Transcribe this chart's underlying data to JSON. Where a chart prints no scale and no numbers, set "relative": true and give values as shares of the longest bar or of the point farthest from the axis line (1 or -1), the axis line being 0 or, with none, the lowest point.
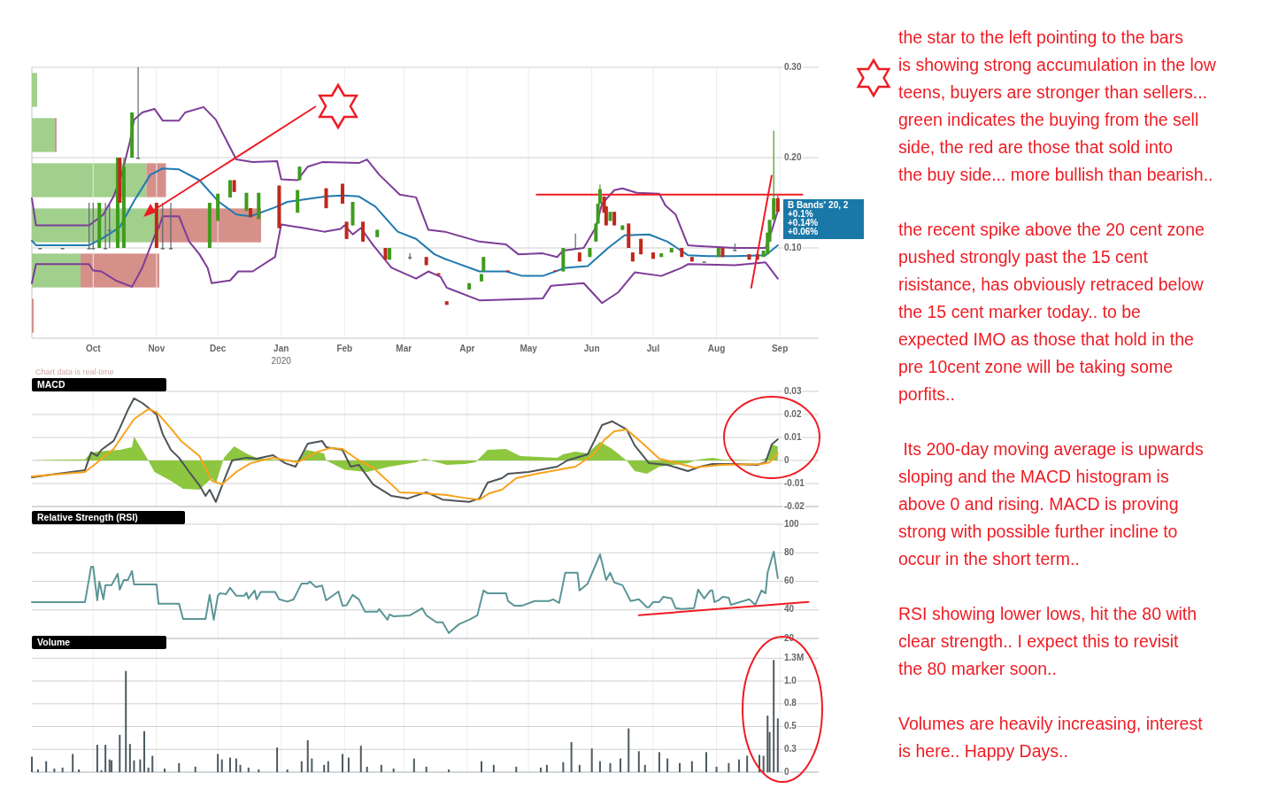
{
  "chart_data": [
    {
      "type": "candlestick",
      "xlim": [
        "2019-09-01",
        "2020-09-20"
      ],
      "ylim": [
        0,
        0.3
      ],
      "xticks": [
        {
          "value": "2019-10-01",
          "label": "Oct"
        },
        {
          "value": "2019-11-01",
          "label": "Nov"
        },
        {
          "value": "2019-12-01",
          "label": "Dec"
        },
        {
          "value": "2020-01-01",
          "label": "Jan\n2020"
        },
        {
          "value": "2020-02-01",
          "label": "Feb"
        },
        {
          "value": "2020-03-01",
          "label": "Mar"
        },
        {
          "value": "2020-04-01",
          "label": "Apr"
        },
        {
          "value": "2020-05-01",
          "label": "May"
        },
        {
          "value": "2020-06-01",
          "label": "Jun"
        },
        {
          "value": "2020-07-01",
          "label": "Jul"
        },
        {
          "value": "2020-08-01",
          "label": "Aug"
        },
        {
          "value": "2020-09-01",
          "label": "Sep"
        }
      ],
      "yticks": [
        {
          "value": 0.1,
          "label": "0.10"
        },
        {
          "value": 0.2,
          "label": "0.20"
        },
        {
          "value": 0.3,
          "label": "0.30"
        }
      ],
      "grid": true,
      "x": [
        "2019-09-05",
        "2019-09-16",
        "2019-09-29",
        "2019-10-01",
        "2019-10-04",
        "2019-10-07",
        "2019-10-09",
        "2019-10-13",
        "2019-10-14",
        "2019-10-16",
        "2019-10-20",
        "2019-10-23",
        "2019-11-01",
        "2019-11-04",
        "2019-11-08",
        "2019-11-27",
        "2019-12-01",
        "2019-12-07",
        "2019-12-09",
        "2019-12-15",
        "2019-12-17",
        "2019-12-21",
        "2019-12-31",
        "2020-01-09",
        "2020-01-10",
        "2020-01-23",
        "2020-01-31",
        "2020-02-02",
        "2020-02-05",
        "2020-02-10",
        "2020-02-17",
        "2020-02-21",
        "2020-02-23",
        "2020-03-04",
        "2020-03-12",
        "2020-03-18",
        "2020-03-22",
        "2020-04-02",
        "2020-04-08",
        "2020-04-09",
        "2020-04-21",
        "2020-05-14",
        "2020-05-18",
        "2020-05-24",
        "2020-05-26",
        "2020-05-31",
        "2020-06-03",
        "2020-06-04",
        "2020-06-05",
        "2020-06-07",
        "2020-06-08",
        "2020-06-10",
        "2020-06-12",
        "2020-06-16",
        "2020-06-19",
        "2020-06-21",
        "2020-06-25",
        "2020-07-01",
        "2020-07-05",
        "2020-07-10",
        "2020-07-15",
        "2020-07-20",
        "2020-07-26",
        "2020-08-02",
        "2020-08-04",
        "2020-08-10",
        "2020-08-17",
        "2020-08-21",
        "2020-08-24",
        "2020-08-26",
        "2020-08-27",
        "2020-08-29",
        "2020-08-31"
      ],
      "ohlc": [
        [
          0.1,
          0.1,
          0.1,
          0.1
        ],
        [
          0.1,
          0.1,
          0.1,
          0.1
        ],
        [
          0.1,
          0.15,
          0.1,
          0.1
        ],
        [
          0.1,
          0.15,
          0.1,
          0.1
        ],
        [
          0.1,
          0.15,
          0.1,
          0.15
        ],
        [
          0.1,
          0.15,
          0.1,
          0.1
        ],
        [
          0.12,
          0.15,
          0.1,
          0.12
        ],
        [
          0.1,
          0.2,
          0.1,
          0.2
        ],
        [
          0.2,
          0.2,
          0.15,
          0.15
        ],
        [
          0.1,
          0.2,
          0.1,
          0.19
        ],
        [
          0.2,
          0.25,
          0.2,
          0.25
        ],
        [
          0.2,
          0.3,
          0.2,
          0.2
        ],
        [
          0.15,
          0.15,
          0.1,
          0.1
        ],
        [
          0.1,
          0.15,
          0.1,
          0.1
        ],
        [
          0.1,
          0.15,
          0.1,
          0.1
        ],
        [
          0.1,
          0.15,
          0.1,
          0.15
        ],
        [
          0.13,
          0.16,
          0.13,
          0.16
        ],
        [
          0.156,
          0.175,
          0.156,
          0.175
        ],
        [
          0.175,
          0.175,
          0.162,
          0.162
        ],
        [
          0.141,
          0.161,
          0.141,
          0.161
        ],
        [
          0.144,
          0.144,
          0.134,
          0.134
        ],
        [
          0.132,
          0.161,
          0.132,
          0.161
        ],
        [
          0.169,
          0.169,
          0.122,
          0.122
        ],
        [
          0.139,
          0.164,
          0.139,
          0.164
        ],
        [
          0.175,
          0.19,
          0.175,
          0.19
        ],
        [
          0.166,
          0.166,
          0.144,
          0.144
        ],
        [
          0.171,
          0.171,
          0.149,
          0.149
        ],
        [
          0.129,
          0.129,
          0.11,
          0.11
        ],
        [
          0.125,
          0.151,
          0.125,
          0.151
        ],
        [
          0.129,
          0.129,
          0.107,
          0.107
        ],
        [
          0.112,
          0.12,
          0.112,
          0.12
        ],
        [
          0.1,
          0.1,
          0.087,
          0.087
        ],
        [
          0.087,
          0.1,
          0.087,
          0.1
        ],
        [
          0.09,
          0.094,
          0.087,
          0.09
        ],
        [
          0.09,
          0.09,
          0.081,
          0.081
        ],
        [
          0.072,
          0.072,
          0.07,
          0.07
        ],
        [
          0.041,
          0.041,
          0.037,
          0.037
        ],
        [
          0.054,
          0.061,
          0.054,
          0.061
        ],
        [
          0.063,
          0.071,
          0.063,
          0.071
        ],
        [
          0.074,
          0.09,
          0.074,
          0.09
        ],
        [
          0.075,
          0.075,
          0.074,
          0.074
        ],
        [
          0.075,
          0.075,
          0.074,
          0.074
        ],
        [
          0.074,
          0.1,
          0.074,
          0.1
        ],
        [
          0.1,
          0.116,
          0.1,
          0.1
        ],
        [
          0.095,
          0.095,
          0.085,
          0.085
        ],
        [
          0.09,
          0.1,
          0.09,
          0.1
        ],
        [
          0.107,
          0.127,
          0.107,
          0.127
        ],
        [
          0.127,
          0.149,
          0.127,
          0.149
        ],
        [
          0.149,
          0.17,
          0.149,
          0.165
        ],
        [
          0.157,
          0.157,
          0.139,
          0.139
        ],
        [
          0.146,
          0.146,
          0.125,
          0.125
        ],
        [
          0.13,
          0.14,
          0.13,
          0.14
        ],
        [
          0.14,
          0.14,
          0.125,
          0.125
        ],
        [
          0.12,
          0.125,
          0.12,
          0.125
        ],
        [
          0.127,
          0.127,
          0.1,
          0.1
        ],
        [
          0.095,
          0.095,
          0.085,
          0.085
        ],
        [
          0.11,
          0.11,
          0.093,
          0.093
        ],
        [
          0.095,
          0.095,
          0.088,
          0.088
        ],
        [
          0.09,
          0.094,
          0.09,
          0.094
        ],
        [
          0.095,
          0.1,
          0.095,
          0.1
        ],
        [
          0.1,
          0.1,
          0.09,
          0.09
        ],
        [
          0.09,
          0.09,
          0.085,
          0.085
        ],
        [
          0.085,
          0.085,
          0.085,
          0.085
        ],
        [
          0.09,
          0.1,
          0.09,
          0.1
        ],
        [
          0.1,
          0.1,
          0.09,
          0.09
        ],
        [
          0.098,
          0.105,
          0.098,
          0.098
        ],
        [
          0.093,
          0.093,
          0.087,
          0.087
        ],
        [
          0.093,
          0.093,
          0.087,
          0.087
        ],
        [
          0.09,
          0.097,
          0.09,
          0.097
        ],
        [
          0.093,
          0.117,
          0.093,
          0.117
        ],
        [
          0.107,
          0.131,
          0.107,
          0.131
        ],
        [
          0.131,
          0.23,
          0.131,
          0.155
        ],
        [
          0.155,
          0.158,
          0.14,
          0.14
        ]
      ],
      "series": [
        {
          "type": "line",
          "color": "#7d3c98",
          "x": [
            "2019-09-01",
            "2019-09-03",
            "2019-09-29",
            "2019-10-06",
            "2019-10-11",
            "2019-10-15",
            "2019-10-19",
            "2019-10-21",
            "2019-10-25",
            "2019-10-31",
            "2019-11-04",
            "2019-11-12",
            "2019-11-15",
            "2019-11-24",
            "2019-11-30",
            "2019-12-10",
            "2019-12-18",
            "2019-12-30",
            "2020-01-01",
            "2020-01-09",
            "2020-01-14",
            "2020-01-21",
            "2020-02-08",
            "2020-02-12",
            "2020-02-18",
            "2020-02-28",
            "2020-03-07",
            "2020-03-13",
            "2020-03-21",
            "2020-04-07",
            "2020-04-20",
            "2020-04-26",
            "2020-05-08",
            "2020-05-15",
            "2020-05-18",
            "2020-05-28",
            "2020-06-03",
            "2020-06-06",
            "2020-06-12",
            "2020-06-16",
            "2020-06-23",
            "2020-07-04",
            "2020-07-07",
            "2020-07-12",
            "2020-07-18",
            "2020-07-24",
            "2020-08-10",
            "2020-08-25",
            "2020-08-28",
            "2020-08-31"
          ],
          "values": [
            0.155,
            0.125,
            0.125,
            0.137,
            0.157,
            0.182,
            0.218,
            0.242,
            0.25,
            0.254,
            0.241,
            0.241,
            0.25,
            0.256,
            0.242,
            0.198,
            0.195,
            0.196,
            0.176,
            0.175,
            0.19,
            0.195,
            0.194,
            0.198,
            0.181,
            0.159,
            0.156,
            0.12,
            0.118,
            0.107,
            0.104,
            0.093,
            0.094,
            0.09,
            0.097,
            0.1,
            0.123,
            0.149,
            0.164,
            0.166,
            0.161,
            0.16,
            0.147,
            0.137,
            0.103,
            0.102,
            0.1,
            0.1,
            0.119,
            0.141
          ]
        },
        {
          "type": "line",
          "color": "#1f7bb0",
          "x": [
            "2019-09-01",
            "2019-09-03",
            "2019-09-29",
            "2019-10-05",
            "2019-10-14",
            "2019-10-21",
            "2019-10-29",
            "2019-11-04",
            "2019-11-12",
            "2019-11-22",
            "2019-12-01",
            "2019-12-10",
            "2019-12-17",
            "2019-12-29",
            "2020-01-04",
            "2020-01-13",
            "2020-01-23",
            "2020-01-31",
            "2020-02-08",
            "2020-02-16",
            "2020-02-27",
            "2020-03-07",
            "2020-03-16",
            "2020-03-21",
            "2020-04-07",
            "2020-04-20",
            "2020-04-28",
            "2020-05-08",
            "2020-05-19",
            "2020-05-30",
            "2020-06-09",
            "2020-06-17",
            "2020-06-29",
            "2020-07-08",
            "2020-07-18",
            "2020-07-28",
            "2020-08-10",
            "2020-08-25",
            "2020-08-31"
          ],
          "values": [
            0.108,
            0.103,
            0.103,
            0.11,
            0.123,
            0.152,
            0.181,
            0.188,
            0.187,
            0.175,
            0.152,
            0.137,
            0.135,
            0.145,
            0.151,
            0.154,
            0.157,
            0.158,
            0.157,
            0.146,
            0.118,
            0.11,
            0.093,
            0.088,
            0.074,
            0.074,
            0.069,
            0.069,
            0.078,
            0.08,
            0.1,
            0.114,
            0.115,
            0.107,
            0.092,
            0.091,
            0.091,
            0.092,
            0.103
          ]
        },
        {
          "type": "line",
          "color": "#7d3c98",
          "x": [
            "2019-09-01",
            "2019-09-03",
            "2019-09-29",
            "2019-10-01",
            "2019-10-05",
            "2019-10-12",
            "2019-10-20",
            "2019-10-25",
            "2019-10-31",
            "2019-11-02",
            "2019-11-04",
            "2019-11-12",
            "2019-11-17",
            "2019-11-22",
            "2019-11-26",
            "2019-11-28",
            "2019-12-07",
            "2019-12-11",
            "2019-12-18",
            "2019-12-29",
            "2020-01-01",
            "2020-01-12",
            "2020-01-22",
            "2020-01-30",
            "2020-02-01",
            "2020-02-05",
            "2020-02-09",
            "2020-02-15",
            "2020-02-24",
            "2020-03-07",
            "2020-03-13",
            "2020-03-19",
            "2020-03-22",
            "2020-04-07",
            "2020-05-08",
            "2020-05-12",
            "2020-05-28",
            "2020-06-06",
            "2020-06-14",
            "2020-06-22",
            "2020-07-05",
            "2020-07-15",
            "2020-07-18",
            "2020-08-10",
            "2020-08-25",
            "2020-08-31"
          ],
          "values": [
            0.061,
            0.082,
            0.082,
            0.075,
            0.074,
            0.064,
            0.057,
            0.078,
            0.113,
            0.122,
            0.135,
            0.135,
            0.107,
            0.093,
            0.078,
            0.061,
            0.064,
            0.074,
            0.074,
            0.09,
            0.126,
            0.122,
            0.118,
            0.121,
            0.125,
            0.115,
            0.122,
            0.103,
            0.078,
            0.066,
            0.074,
            0.068,
            0.056,
            0.042,
            0.044,
            0.058,
            0.061,
            0.039,
            0.051,
            0.073,
            0.069,
            0.078,
            0.082,
            0.081,
            0.084,
            0.066
          ]
        },
        {
          "type": "line",
          "color": "#ee1c24",
          "x": [
            "2020-05-05",
            "2020-09-12"
          ],
          "values": [
            0.159,
            0.159
          ]
        },
        {
          "type": "line",
          "color": "#ee1c24",
          "x": [
            "2020-08-18",
            "2020-08-28"
          ],
          "values": [
            0.056,
            0.18
          ]
        }
      ],
      "annotations": [
        "B Bands$^{*}$ 20, 2",
        "+0.1%",
        "+0.14%",
        "+0.06%",
        "Chart data is real-time"
      ]
    },
    {
      "type": "bar",
      "orientation": "horizontal",
      "stacked": true,
      "relative": true,
      "categories": [
        null,
        null,
        null,
        null,
        null,
        null
      ],
      "series": [
        {
          "color": "#9ccc86",
          "values": [
            0.023,
            0.1,
            0.5,
            0.556,
            0.212,
            0
          ]
        },
        {
          "color": "#d48a84",
          "values": [
            0,
            0.008,
            0.085,
            0.444,
            0.344,
            0.008
          ]
        }
      ]
    },
    {
      "type": "line",
      "title": "MACD",
      "xlim": [
        "2019-09-01",
        "2020-09-20"
      ],
      "ylim": [
        -0.02,
        0.03
      ],
      "tick_labels": "y",
      "grid": true,
      "xticks": [
        "2019-10-01",
        "2019-11-01",
        "2019-12-01",
        "2020-01-01",
        "2020-02-01",
        "2020-03-01",
        "2020-04-01",
        "2020-05-01",
        "2020-06-01",
        "2020-07-01",
        "2020-08-01",
        "2020-09-01"
      ],
      "yticks": [
        0.03,
        0.02,
        0.01,
        0,
        -0.01,
        -0.02
      ],
      "series": [
        {
          "type": "area",
          "color": "#8dc63f",
          "x": [
            "2019-09-01",
            "2019-09-12",
            "2019-09-27",
            "2019-09-30",
            "2019-10-05",
            "2019-10-14",
            "2019-10-20",
            "2019-10-21",
            "2019-10-28",
            "2019-10-31",
            "2019-11-08",
            "2019-11-14",
            "2019-11-22",
            "2019-11-28",
            "2019-11-30",
            "2019-12-04",
            "2019-12-09",
            "2019-12-15",
            "2019-12-20",
            "2019-12-28",
            "2020-01-09",
            "2020-01-13",
            "2020-01-22",
            "2020-01-23",
            "2020-02-01",
            "2020-02-12",
            "2020-02-23",
            "2020-03-07",
            "2020-03-11",
            "2020-03-22",
            "2020-03-31",
            "2020-04-05",
            "2020-04-11",
            "2020-04-20",
            "2020-04-27",
            "2020-05-15",
            "2020-05-18",
            "2020-05-24",
            "2020-05-30",
            "2020-06-05",
            "2020-06-11",
            "2020-06-18",
            "2020-06-22",
            "2020-06-28",
            "2020-07-04",
            "2020-07-18",
            "2020-07-23",
            "2020-07-30",
            "2020-08-04",
            "2020-08-22",
            "2020-08-26",
            "2020-08-28",
            "2020-08-31"
          ],
          "values": [
            0,
            0.0003,
            0.0005,
            0.0035,
            0.004,
            0.0046,
            0.0058,
            0.0104,
            0,
            -0.005,
            -0.0088,
            -0.0123,
            -0.0127,
            -0.0077,
            -0.01,
            0.0012,
            0.0062,
            0.003,
            0.0012,
            0.0005,
            -0.0008,
            0.0046,
            0.0031,
            0,
            -0.004,
            -0.005,
            -0.0027,
            -0.0008,
            0.0008,
            -0.0019,
            -0.0015,
            -0.0008,
            0.0046,
            0.005,
            0.0019,
            0.0012,
            0.0027,
            0.0038,
            0.0031,
            0.0081,
            0.005,
            0,
            -0.0046,
            -0.0058,
            -0.0027,
            -0.0012,
            0.0004,
            0.0012,
            0.0004,
            0,
            0.0012,
            0.0069,
            0.0062
          ]
        },
        {
          "type": "line",
          "color": "#4d5459",
          "x": [
            "2019-09-01",
            "2019-09-12",
            "2019-09-27",
            "2019-09-30",
            "2019-10-03",
            "2019-10-05",
            "2019-10-11",
            "2019-10-14",
            "2019-10-18",
            "2019-10-21",
            "2019-10-25",
            "2019-11-01",
            "2019-11-04",
            "2019-11-08",
            "2019-11-12",
            "2019-11-17",
            "2019-11-22",
            "2019-11-25",
            "2019-11-27",
            "2019-11-30",
            "2019-12-05",
            "2019-12-08",
            "2019-12-15",
            "2019-12-20",
            "2019-12-28",
            "2020-01-03",
            "2020-01-08",
            "2020-01-14",
            "2020-01-21",
            "2020-01-23",
            "2020-01-31",
            "2020-02-04",
            "2020-02-08",
            "2020-02-15",
            "2020-02-24",
            "2020-03-03",
            "2020-03-12",
            "2020-03-20",
            "2020-04-02",
            "2020-04-07",
            "2020-04-11",
            "2020-04-18",
            "2020-04-21",
            "2020-05-01",
            "2020-05-15",
            "2020-05-20",
            "2020-05-30",
            "2020-06-06",
            "2020-06-11",
            "2020-06-18",
            "2020-06-22",
            "2020-06-29",
            "2020-07-08",
            "2020-07-18",
            "2020-07-24",
            "2020-07-30",
            "2020-08-10",
            "2020-08-21",
            "2020-08-25",
            "2020-08-28",
            "2020-08-31"
          ],
          "values": [
            -0.0073,
            -0.006,
            -0.0042,
            0.0035,
            0.002,
            0.0046,
            0.0085,
            0.014,
            0.022,
            0.027,
            0.025,
            0.02,
            0.0115,
            0.0046,
            0.0012,
            -0.005,
            -0.0108,
            -0.0154,
            -0.0127,
            -0.018,
            -0.0065,
            0,
            0.0012,
            0.0008,
            0.0023,
            -0.0012,
            -0.0027,
            0.0073,
            0.0085,
            0.0058,
            0.0046,
            -0.0027,
            -0.0019,
            -0.0104,
            -0.0154,
            -0.0165,
            -0.0138,
            -0.017,
            -0.018,
            -0.0165,
            -0.0096,
            -0.0077,
            -0.0058,
            -0.005,
            -0.0027,
            0,
            0.0027,
            0.0154,
            0.017,
            0.0135,
            0.0065,
            -0.0012,
            -0.0019,
            -0.0046,
            -0.0027,
            -0.0015,
            -0.0015,
            -0.0019,
            -0.0008,
            0.0069,
            0.0092
          ]
        },
        {
          "type": "line",
          "color": "#f7a21b",
          "x": [
            "2019-09-01",
            "2019-09-27",
            "2019-10-01",
            "2019-10-11",
            "2019-10-21",
            "2019-10-28",
            "2019-11-01",
            "2019-11-08",
            "2019-11-13",
            "2019-11-22",
            "2019-11-28",
            "2019-12-03",
            "2019-12-10",
            "2019-12-17",
            "2019-12-28",
            "2020-01-09",
            "2020-01-19",
            "2020-01-25",
            "2020-01-31",
            "2020-02-08",
            "2020-02-15",
            "2020-02-28",
            "2020-03-10",
            "2020-03-22",
            "2020-03-30",
            "2020-04-07",
            "2020-04-12",
            "2020-04-18",
            "2020-04-25",
            "2020-05-05",
            "2020-05-24",
            "2020-06-02",
            "2020-06-07",
            "2020-06-12",
            "2020-06-18",
            "2020-06-27",
            "2020-07-04",
            "2020-07-11",
            "2020-07-21",
            "2020-08-03",
            "2020-08-23",
            "2020-08-27",
            "2020-08-31"
          ],
          "values": [
            -0.0069,
            -0.005,
            -0.0023,
            0.005,
            0.018,
            0.0223,
            0.021,
            0.014,
            0.0085,
            0.0019,
            -0.0088,
            -0.0104,
            -0.005,
            -0.0012,
            0.0012,
            -0.0008,
            0.0038,
            0.0054,
            0.005,
            0,
            -0.0031,
            -0.0138,
            -0.0142,
            -0.015,
            -0.0162,
            -0.017,
            -0.0142,
            -0.0127,
            -0.0077,
            -0.0058,
            -0.0027,
            0.0027,
            0.0088,
            0.0127,
            0.0135,
            0.0065,
            0.0008,
            -0.0008,
            -0.0031,
            -0.0019,
            -0.0015,
            -0.0008,
            0.0031
          ]
        }
      ]
    },
    {
      "type": "line",
      "title": "Relative Strength (RSI)",
      "xlim": [
        "2019-09-01",
        "2020-09-20"
      ],
      "ylim": [
        20,
        100
      ],
      "tick_labels": "y",
      "grid": true,
      "xticks": [
        "2019-10-01",
        "2019-11-01",
        "2019-12-01",
        "2020-01-01",
        "2020-02-01",
        "2020-03-01",
        "2020-04-01",
        "2020-05-01",
        "2020-06-01",
        "2020-07-01",
        "2020-08-01",
        "2020-09-01"
      ],
      "yticks": [
        100,
        80,
        60,
        40,
        20
      ],
      "series": [
        {
          "type": "line",
          "color": "#5b9597",
          "x": [
            "2019-09-01",
            "2019-09-27",
            "2019-09-30",
            "2019-10-01",
            "2019-10-03",
            "2019-10-04",
            "2019-10-06",
            "2019-10-07",
            "2019-10-10",
            "2019-10-13",
            "2019-10-14",
            "2019-10-16",
            "2019-10-18",
            "2019-10-20",
            "2019-10-21",
            "2019-11-01",
            "2019-11-02",
            "2019-11-12",
            "2019-11-14",
            "2019-11-25",
            "2019-11-27",
            "2019-11-29",
            "2019-12-01",
            "2019-12-02",
            "2019-12-05",
            "2019-12-07",
            "2019-12-10",
            "2019-12-14",
            "2019-12-15",
            "2019-12-16",
            "2019-12-19",
            "2019-12-20",
            "2019-12-22",
            "2019-12-29",
            "2019-12-31",
            "2020-01-04",
            "2020-01-07",
            "2020-01-11",
            "2020-01-14",
            "2020-01-15",
            "2020-01-18",
            "2020-01-21",
            "2020-01-23",
            "2020-01-29",
            "2020-01-31",
            "2020-02-02",
            "2020-02-05",
            "2020-02-08",
            "2020-02-11",
            "2020-02-17",
            "2020-02-18",
            "2020-02-22",
            "2020-02-23",
            "2020-02-25",
            "2020-03-04",
            "2020-03-10",
            "2020-03-12",
            "2020-03-17",
            "2020-03-20",
            "2020-03-23",
            "2020-03-28",
            "2020-04-02",
            "2020-04-06",
            "2020-04-09",
            "2020-04-11",
            "2020-04-20",
            "2020-04-21",
            "2020-04-24",
            "2020-04-28",
            "2020-05-04",
            "2020-05-11",
            "2020-05-13",
            "2020-05-16",
            "2020-05-19",
            "2020-05-25",
            "2020-05-26",
            "2020-05-28",
            "2020-05-30",
            "2020-06-03",
            "2020-06-05",
            "2020-06-08",
            "2020-06-10",
            "2020-06-12",
            "2020-06-16",
            "2020-06-20",
            "2020-06-24",
            "2020-06-28",
            "2020-06-29",
            "2020-07-01",
            "2020-07-04",
            "2020-07-06",
            "2020-07-10",
            "2020-07-12",
            "2020-07-15",
            "2020-07-21",
            "2020-07-23",
            "2020-07-26",
            "2020-07-29",
            "2020-07-30",
            "2020-07-31",
            "2020-08-02",
            "2020-08-04",
            "2020-08-07",
            "2020-08-08",
            "2020-08-17",
            "2020-08-20",
            "2020-08-23",
            "2020-08-25",
            "2020-08-26",
            "2020-08-29",
            "2020-08-31"
          ],
          "values": [
            45.5,
            45.5,
            70.3,
            70.3,
            46.7,
            59.8,
            47.4,
            57.3,
            57.3,
            65.3,
            54.2,
            61,
            61,
            67.2,
            57.9,
            57.9,
            44.3,
            44.3,
            33.7,
            33.7,
            50.5,
            33.1,
            49.8,
            51.7,
            51,
            55.4,
            50,
            50,
            52,
            48,
            53.6,
            47.4,
            52.6,
            52.6,
            47.4,
            45.8,
            47.3,
            58.5,
            58.5,
            59.8,
            56,
            57,
            46.7,
            52.9,
            43,
            43.3,
            50.5,
            47.4,
            38.7,
            38.7,
            40.6,
            33.1,
            36.8,
            35.5,
            36.2,
            41.2,
            36.2,
            31.3,
            31.3,
            23.8,
            30,
            33.1,
            36.2,
            53.6,
            51.7,
            51.7,
            46.2,
            43,
            43,
            46.2,
            46.2,
            47.4,
            44.9,
            66,
            66,
            53.6,
            56,
            58.5,
            72.1,
            78.9,
            61,
            66,
            59.2,
            57.3,
            46.2,
            47.4,
            41.9,
            41.9,
            45.5,
            45.5,
            49.2,
            48,
            41.2,
            40.6,
            41.2,
            54.2,
            48,
            53.6,
            53.6,
            45.5,
            46.7,
            49.2,
            48.5,
            43.6,
            47.4,
            43.6,
            53.6,
            51.7,
            66,
            80.8,
            62.2
          ]
        },
        {
          "type": "line",
          "color": "#ee1c24",
          "x": [
            "2020-06-24",
            "2020-09-15"
          ],
          "values": [
            36.3,
            45.6
          ]
        }
      ]
    },
    {
      "type": "bar",
      "title": "Volume",
      "xlim": [
        "2019-09-01",
        "2020-09-20"
      ],
      "ylim": [
        0,
        1.35
      ],
      "tick_labels": "y",
      "grid": true,
      "color": "#4d5a61",
      "xticks": [
        "2019-10-01",
        "2019-11-01",
        "2019-12-01",
        "2020-01-01",
        "2020-02-01",
        "2020-03-01",
        "2020-04-01",
        "2020-05-01",
        "2020-06-01",
        "2020-07-01",
        "2020-08-01",
        "2020-09-01"
      ],
      "yticks": [
        {
          "value": 0,
          "label": "0"
        },
        {
          "value": 0.25,
          "label": "0.3"
        },
        {
          "value": 0.5,
          "label": "0.5"
        },
        {
          "value": 0.75,
          "label": "0.8"
        },
        {
          "value": 1,
          "label": "1.0"
        },
        {
          "value": 1.25,
          "label": "1.3M"
        }
      ],
      "x": [
        "2019-09-01",
        "2019-09-04",
        "2019-09-08",
        "2019-09-12",
        "2019-09-16",
        "2019-09-21",
        "2019-09-24",
        "2019-10-03",
        "2019-10-05",
        "2019-10-07",
        "2019-10-09",
        "2019-10-10",
        "2019-10-14",
        "2019-10-17",
        "2019-10-19",
        "2019-10-21",
        "2019-10-24",
        "2019-10-26",
        "2019-10-28",
        "2019-10-30",
        "2019-11-05",
        "2019-11-12",
        "2019-11-20",
        "2019-12-01",
        "2019-12-03",
        "2019-12-07",
        "2019-12-10",
        "2019-12-12",
        "2019-12-16",
        "2019-12-21",
        "2019-12-30",
        "2020-01-04",
        "2020-01-11",
        "2020-01-14",
        "2020-01-16",
        "2020-01-22",
        "2020-01-24",
        "2020-01-31",
        "2020-02-03",
        "2020-02-09",
        "2020-02-12",
        "2020-02-19",
        "2020-02-25",
        "2020-03-06",
        "2020-03-12",
        "2020-03-23",
        "2020-04-08",
        "2020-04-14",
        "2020-04-25",
        "2020-05-07",
        "2020-05-10",
        "2020-05-18",
        "2020-05-22",
        "2020-05-26",
        "2020-06-01",
        "2020-06-05",
        "2020-06-10",
        "2020-06-15",
        "2020-06-19",
        "2020-06-24",
        "2020-06-27",
        "2020-07-04",
        "2020-07-08",
        "2020-07-14",
        "2020-07-20",
        "2020-07-27",
        "2020-08-01",
        "2020-08-07",
        "2020-08-12",
        "2020-08-16",
        "2020-08-22",
        "2020-08-24",
        "2020-08-26",
        "2020-08-27",
        "2020-08-29",
        "2020-08-31"
      ],
      "values": [
        0.17,
        0.03,
        0.12,
        0.04,
        0.05,
        0.2,
        0.03,
        0.3,
        0.02,
        0.3,
        0.14,
        0.13,
        0.41,
        1.11,
        0.31,
        0.13,
        0.14,
        0.45,
        0.05,
        0.18,
        0.04,
        0.1,
        0.06,
        0.2,
        0.14,
        0.16,
        0.15,
        0.08,
        0.05,
        0.03,
        0.27,
        0.03,
        0.12,
        0.35,
        0.15,
        0.08,
        0.12,
        0.2,
        0.16,
        0.29,
        0.06,
        0.08,
        0.04,
        0.15,
        0.06,
        0.03,
        0.12,
        0.08,
        0.06,
        0.05,
        0.08,
        0.11,
        0.33,
        0.08,
        0.26,
        0.12,
        0.1,
        0.15,
        0.48,
        0.23,
        0.08,
        0.22,
        0.15,
        0.1,
        0.12,
        0.22,
        0.06,
        0.1,
        0.14,
        0.18,
        0.19,
        0.18,
        0.62,
        0.44,
        1.23,
        0.59
      ]
    },
    {
      "type": "other",
      "annotations": [
        "the star to the left pointing to the bars\nis showing strong accumulation in the low\nteens, buyers are stronger than sellers...\ngreen indicates the buying from the sell\nside, the red are those that sold into\nthe buy side... more bullish than bearish..",
        "the recent spike above the 20 cent zone\npushed strongly past the 15 cent\nrisistance, has obviously retraced below\nthe 15 cent marker today.. to be\nexpected IMO as those that hold in the\npre 10cent zone will be taking some\nporfits..",
        " Its 200-day moving average is upwards\nsloping and the MACD histogram is\nabove 0 and rising. MACD is proving\nstrong with possible further incline to\noccur in the short term..",
        "RSI showing lower lows, hit the 80 with\nclear strength.. I expect this to revisit\nthe 80 marker soon..",
        "Volumes are heavily increasing, interest\nis here.. Happy Days.."
      ]
    }
  ]
}
